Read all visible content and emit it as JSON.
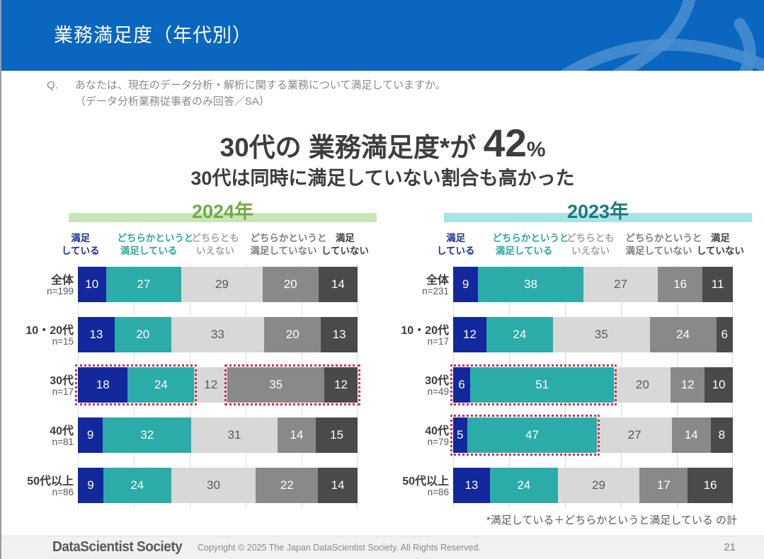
{
  "header": {
    "title": "業務満足度（年代別）"
  },
  "question": {
    "label": "Q.",
    "line1": "あなたは、現在のデータ分析・解析に関する業務について満足していますか。",
    "line2": "（データ分析業務従事者のみ回答／SA）"
  },
  "headline": {
    "prefix": "30代の 業務満足度*が ",
    "value": "42",
    "percent": "%",
    "subtitle": "30代は同時に満足していない割合も高かった"
  },
  "legend": {
    "items": [
      {
        "line1": "満足",
        "line2": "している",
        "color": "#1c2f96"
      },
      {
        "line1": "どちらかというと",
        "line2": "満足している",
        "color": "#2aa8a4"
      },
      {
        "line1": "どちらとも",
        "line2": "いえない",
        "color": "#a6a6a6"
      },
      {
        "line1": "どちらかというと",
        "line2": "満足していない",
        "color": "#7f7f7f"
      },
      {
        "line1": "満足",
        "line2": "していない",
        "color": "#404040"
      }
    ],
    "widths": [
      "22%",
      "19%",
      "21%",
      "19%",
      "19%"
    ]
  },
  "theme": {
    "banner_color": "#0a66be",
    "banner_accent_color": "#4a8fd2",
    "segment_colors": [
      "#12289c",
      "#2baca9",
      "#d8d8d8",
      "#898989",
      "#4a4a4a"
    ],
    "segment_text_colors": [
      "#ffffff",
      "#ffffff",
      "#595959",
      "#ffffff",
      "#ffffff"
    ],
    "highlight_color": "#d4294e",
    "grid_color": "#dcdcdc"
  },
  "chart_data": [
    {
      "type": "bar",
      "stacked": true,
      "orientation": "horizontal",
      "title": "2024年",
      "title_color": "#6fac46",
      "header_bar_color": "#c9e5b5",
      "unit": "%",
      "xlim": [
        0,
        100
      ],
      "categories": [
        "全体",
        "10・20代",
        "30代",
        "40代",
        "50代以上"
      ],
      "sample_sizes": [
        "n=199",
        "n=15",
        "n=17",
        "n=81",
        "n=86"
      ],
      "series": [
        {
          "name": "満足している",
          "values": [
            10,
            13,
            18,
            9,
            9
          ]
        },
        {
          "name": "どちらかというと満足している",
          "values": [
            27,
            20,
            24,
            32,
            24
          ]
        },
        {
          "name": "どちらともいえない",
          "values": [
            29,
            33,
            12,
            31,
            30
          ]
        },
        {
          "name": "どちらかというと満足していない",
          "values": [
            20,
            20,
            35,
            14,
            22
          ]
        },
        {
          "name": "満足していない",
          "values": [
            14,
            13,
            12,
            15,
            14
          ]
        }
      ],
      "highlights": [
        {
          "row": 2,
          "from": 0,
          "to": 1
        },
        {
          "row": 2,
          "from": 3,
          "to": 4
        }
      ]
    },
    {
      "type": "bar",
      "stacked": true,
      "orientation": "horizontal",
      "title": "2023年",
      "title_color": "#1a7b80",
      "header_bar_color": "#a8e3e5",
      "unit": "%",
      "xlim": [
        0,
        100
      ],
      "categories": [
        "全体",
        "10・20代",
        "30代",
        "40代",
        "50代以上"
      ],
      "sample_sizes": [
        "n=231",
        "n=17",
        "n=49",
        "n=79",
        "n=86"
      ],
      "series": [
        {
          "name": "満足している",
          "values": [
            9,
            12,
            6,
            5,
            13
          ]
        },
        {
          "name": "どちらかというと満足している",
          "values": [
            38,
            24,
            51,
            47,
            24
          ]
        },
        {
          "name": "どちらともいえない",
          "values": [
            27,
            35,
            20,
            27,
            29
          ]
        },
        {
          "name": "どちらかというと満足していない",
          "values": [
            16,
            24,
            12,
            14,
            17
          ]
        },
        {
          "name": "満足していない",
          "values": [
            11,
            6,
            10,
            8,
            16
          ]
        }
      ],
      "highlights": [
        {
          "row": 2,
          "from": 0,
          "to": 1
        },
        {
          "row": 3,
          "from": 0,
          "to": 1
        }
      ]
    }
  ],
  "footnote": "*満足している＋どちらかというと満足している の計",
  "footer": {
    "logo": "DataScientist Society",
    "copyright": "Copyright © 2025 The Japan DataScientist Society. All Rights Reserved.",
    "page_number": "21"
  }
}
